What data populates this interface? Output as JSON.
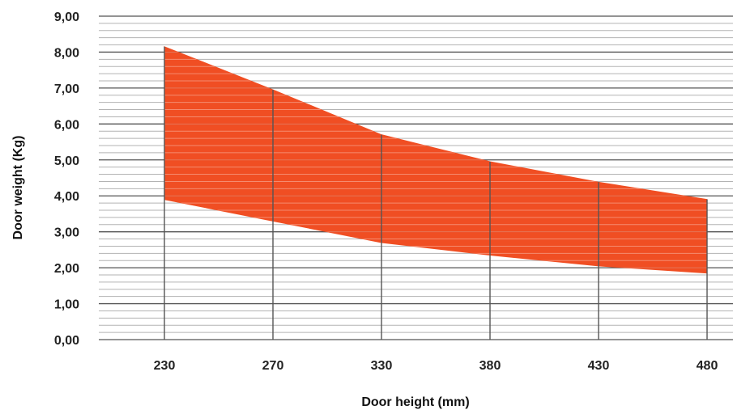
{
  "chart_data": {
    "type": "area",
    "title": "",
    "xlabel": "Door height (mm)",
    "ylabel": "Door weight (Kg)",
    "categories": [
      "230",
      "270",
      "330",
      "380",
      "430",
      "480"
    ],
    "series": [
      {
        "values": [
          8.15,
          6.95,
          5.7,
          4.95,
          4.38,
          3.9
        ]
      },
      {
        "values": [
          3.9,
          3.3,
          2.7,
          2.35,
          2.05,
          1.85
        ]
      }
    ],
    "fill_between": true,
    "ylim": [
      0,
      9
    ],
    "yticks": [
      "0,00",
      "1,00",
      "2,00",
      "3,00",
      "4,00",
      "5,00",
      "6,00",
      "7,00",
      "8,00",
      "9,00"
    ],
    "grid": true,
    "minor_grid_per_major": 5,
    "colors": {
      "fill": "#f04e23",
      "major_grid": "#555555",
      "minor_grid": "#b3b3b3",
      "band_line": "#ffffff"
    }
  }
}
